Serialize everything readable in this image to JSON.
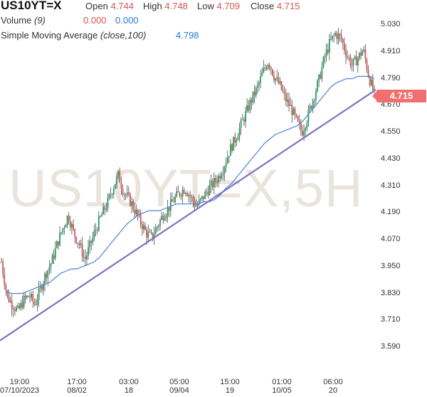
{
  "header": {
    "symbol": "US10YT=X",
    "open_label": "Open",
    "open_value": "4.744",
    "high_label": "High",
    "high_value": "4.748",
    "low_label": "Low",
    "low_value": "4.709",
    "close_label": "Close",
    "close_value": "4.715",
    "volume_label": "Volume",
    "volume_param": "(9)",
    "volume_value_1": "0.000",
    "volume_value_2": "0.000",
    "sma_label": "Simple Moving Average",
    "sma_param": "(close,100)",
    "sma_value": "4.798"
  },
  "watermark": "US10YT=X,5H",
  "last_price_tag": "4.715",
  "colors": {
    "up": "#1f9d63",
    "down": "#d9534f",
    "sma": "#4f7fd6",
    "trendline": "#7b72c2",
    "price_tag": "#f07070"
  },
  "chart_data": {
    "type": "candlestick",
    "y_axis": {
      "ticks": [
        "5.030",
        "4.910",
        "4.790",
        "4.670",
        "4.550",
        "4.430",
        "4.310",
        "4.190",
        "4.070",
        "3.950",
        "3.830",
        "3.710",
        "3.590"
      ],
      "ylim": [
        3.54,
        5.08
      ]
    },
    "x_axis": {
      "ticks": [
        {
          "time": "19:00",
          "date": "07/10/2023"
        },
        {
          "time": "17:00",
          "date": "08/02"
        },
        {
          "time": "03:00",
          "date": "18"
        },
        {
          "time": "05:00",
          "date": "09/04"
        },
        {
          "time": "15:00",
          "date": "19"
        },
        {
          "time": "01:00",
          "date": "10/05"
        },
        {
          "time": "06:00",
          "date": "20"
        }
      ]
    },
    "close_path": [
      3.97,
      3.82,
      3.78,
      3.75,
      3.8,
      3.82,
      3.78,
      3.85,
      3.92,
      3.97,
      4.05,
      4.12,
      4.18,
      4.1,
      4.05,
      3.98,
      4.05,
      4.12,
      4.18,
      4.23,
      4.3,
      4.36,
      4.28,
      4.25,
      4.2,
      4.15,
      4.1,
      4.08,
      4.13,
      4.18,
      4.21,
      4.25,
      4.28,
      4.3,
      4.26,
      4.22,
      4.25,
      4.29,
      4.32,
      4.35,
      4.4,
      4.47,
      4.52,
      4.58,
      4.64,
      4.7,
      4.75,
      4.82,
      4.87,
      4.8,
      4.76,
      4.7,
      4.66,
      4.6,
      4.55,
      4.62,
      4.7,
      4.78,
      4.88,
      4.95,
      4.99,
      4.97,
      4.9,
      4.85,
      4.88,
      4.92,
      4.8,
      4.72
    ],
    "sma_path": [
      3.84,
      3.83,
      3.83,
      3.83,
      3.84,
      3.85,
      3.86,
      3.87,
      3.88,
      3.9,
      3.92,
      3.93,
      3.94,
      3.94,
      3.95,
      3.96,
      3.97,
      3.99,
      4.02,
      4.05,
      4.08,
      4.11,
      4.14,
      4.16,
      4.18,
      4.19,
      4.2,
      4.2,
      4.2,
      4.21,
      4.22,
      4.23,
      4.23,
      4.23,
      4.23,
      4.23,
      4.24,
      4.24,
      4.25,
      4.27,
      4.3,
      4.32,
      4.35,
      4.38,
      4.41,
      4.44,
      4.47,
      4.5,
      4.52,
      4.54,
      4.55,
      4.56,
      4.57,
      4.58,
      4.6,
      4.63,
      4.66,
      4.69,
      4.72,
      4.75,
      4.77,
      4.78,
      4.79,
      4.79,
      4.8,
      4.8,
      4.8,
      4.79
    ],
    "trendline": {
      "start": 3.62,
      "end": 4.74
    },
    "last_close": 4.715,
    "sma_last": 4.798
  }
}
